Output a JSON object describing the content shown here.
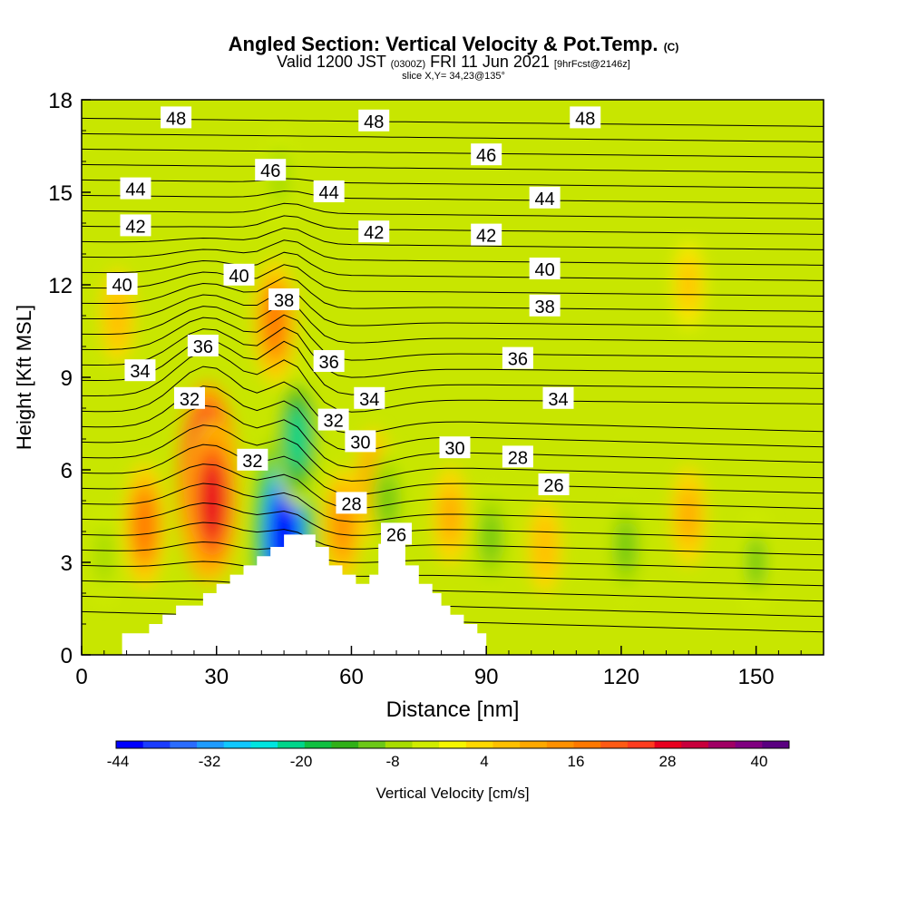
{
  "header": {
    "title": "Angled Section: Vertical Velocity & Pot.Temp.",
    "copyright": "(C)",
    "valid_prefix": "Valid 1200 JST",
    "valid_utc": "(0300Z)",
    "valid_date": "FRI 11 Jun 2021",
    "forecast": "[9hrFcst@2146z]",
    "slice": "slice X,Y= 34,23@135°"
  },
  "chart_data": {
    "type": "heatmap",
    "xlabel": "Distance [nm]",
    "ylabel": "Height [Kft MSL]",
    "xlim": [
      0,
      165
    ],
    "ylim": [
      0,
      18
    ],
    "x_ticks": [
      0,
      30,
      60,
      90,
      120,
      150
    ],
    "y_ticks": [
      0,
      3,
      6,
      9,
      12,
      15,
      18
    ],
    "colorbar": {
      "label": "Vertical Velocity [cm/s]",
      "tick_labels": [
        -44,
        -32,
        -20,
        -8,
        4,
        16,
        28,
        40
      ],
      "levels": [
        -44,
        44
      ],
      "colors": [
        "#0000ff",
        "#1b3cff",
        "#2a6cff",
        "#1e9cff",
        "#10c8ff",
        "#00e5e0",
        "#00d68a",
        "#10c040",
        "#30b018",
        "#6cc818",
        "#a8dc00",
        "#d0ec00",
        "#f6f600",
        "#ffd800",
        "#ffc000",
        "#ffa800",
        "#ff9000",
        "#ff7800",
        "#ff5a14",
        "#ff3c1e",
        "#e8001e",
        "#c8003c",
        "#a00064",
        "#800080",
        "#5a0080"
      ]
    },
    "vertical_velocity_cells": [
      {
        "x": 28,
        "y": 5.6,
        "value": 42
      },
      {
        "x": 29,
        "y": 5.0,
        "value": 30
      },
      {
        "x": 14,
        "y": 4.2,
        "value": 18
      },
      {
        "x": 45,
        "y": 3.8,
        "value": -44
      },
      {
        "x": 48,
        "y": 7.0,
        "value": -22
      },
      {
        "x": 43,
        "y": 10.8,
        "value": 18
      },
      {
        "x": 58,
        "y": 4.2,
        "value": 14
      },
      {
        "x": 65,
        "y": 5.5,
        "value": 14
      },
      {
        "x": 68,
        "y": 5.0,
        "value": -12
      },
      {
        "x": 82,
        "y": 4.5,
        "value": 10
      },
      {
        "x": 91,
        "y": 3.8,
        "value": -12
      },
      {
        "x": 103,
        "y": 3.5,
        "value": 8
      },
      {
        "x": 121,
        "y": 3.5,
        "value": -12
      },
      {
        "x": 135,
        "y": 4.5,
        "value": 10
      },
      {
        "x": 150,
        "y": 3.0,
        "value": -10
      },
      {
        "x": 5,
        "y": 3.2,
        "value": -8
      },
      {
        "x": 8,
        "y": 11.0,
        "value": 8
      },
      {
        "x": 135,
        "y": 12.0,
        "value": 6
      },
      {
        "x": 44,
        "y": 15.5,
        "value": -8
      }
    ],
    "potential_temperature_labels": [
      {
        "value": "48",
        "x": 21,
        "y": 17.4
      },
      {
        "value": "48",
        "x": 65,
        "y": 17.3
      },
      {
        "value": "48",
        "x": 112,
        "y": 17.4
      },
      {
        "value": "46",
        "x": 42,
        "y": 15.7
      },
      {
        "value": "46",
        "x": 90,
        "y": 16.2
      },
      {
        "value": "44",
        "x": 12,
        "y": 15.1
      },
      {
        "value": "44",
        "x": 55,
        "y": 15.0
      },
      {
        "value": "44",
        "x": 103,
        "y": 14.8
      },
      {
        "value": "42",
        "x": 12,
        "y": 13.9
      },
      {
        "value": "42",
        "x": 65,
        "y": 13.7
      },
      {
        "value": "42",
        "x": 90,
        "y": 13.6
      },
      {
        "value": "40",
        "x": 9,
        "y": 12.0
      },
      {
        "value": "40",
        "x": 35,
        "y": 12.3
      },
      {
        "value": "40",
        "x": 103,
        "y": 12.5
      },
      {
        "value": "38",
        "x": 45,
        "y": 11.5
      },
      {
        "value": "38",
        "x": 103,
        "y": 11.3
      },
      {
        "value": "36",
        "x": 27,
        "y": 10.0
      },
      {
        "value": "36",
        "x": 55,
        "y": 9.5
      },
      {
        "value": "36",
        "x": 97,
        "y": 9.6
      },
      {
        "value": "34",
        "x": 13,
        "y": 9.2
      },
      {
        "value": "34",
        "x": 64,
        "y": 8.3
      },
      {
        "value": "34",
        "x": 106,
        "y": 8.3
      },
      {
        "value": "32",
        "x": 24,
        "y": 8.3
      },
      {
        "value": "32",
        "x": 56,
        "y": 7.6
      },
      {
        "value": "32",
        "x": 38,
        "y": 6.3
      },
      {
        "value": "30",
        "x": 62,
        "y": 6.9
      },
      {
        "value": "30",
        "x": 83,
        "y": 6.7
      },
      {
        "value": "28",
        "x": 97,
        "y": 6.4
      },
      {
        "value": "28",
        "x": 60,
        "y": 4.9
      },
      {
        "value": "26",
        "x": 105,
        "y": 5.5
      },
      {
        "value": "26",
        "x": 70,
        "y": 3.9
      }
    ],
    "terrain_profile": [
      [
        9,
        0.3
      ],
      [
        9,
        0.7
      ],
      [
        15,
        0.7
      ],
      [
        15,
        1.0
      ],
      [
        18,
        1.0
      ],
      [
        18,
        1.3
      ],
      [
        21,
        1.3
      ],
      [
        21,
        1.6
      ],
      [
        27,
        1.6
      ],
      [
        27,
        2.0
      ],
      [
        30,
        2.0
      ],
      [
        30,
        2.3
      ],
      [
        33,
        2.3
      ],
      [
        33,
        2.6
      ],
      [
        36,
        2.6
      ],
      [
        36,
        2.9
      ],
      [
        39,
        2.9
      ],
      [
        39,
        3.2
      ],
      [
        42,
        3.2
      ],
      [
        42,
        3.5
      ],
      [
        45,
        3.5
      ],
      [
        45,
        3.9
      ],
      [
        52,
        3.9
      ],
      [
        52,
        3.5
      ],
      [
        55,
        3.5
      ],
      [
        55,
        2.9
      ],
      [
        58,
        2.9
      ],
      [
        58,
        2.6
      ],
      [
        61,
        2.6
      ],
      [
        61,
        2.3
      ],
      [
        64,
        2.3
      ],
      [
        64,
        2.6
      ],
      [
        66,
        2.6
      ],
      [
        66,
        3.6
      ],
      [
        72,
        3.6
      ],
      [
        72,
        2.9
      ],
      [
        75,
        2.9
      ],
      [
        75,
        2.3
      ],
      [
        78,
        2.3
      ],
      [
        78,
        2.0
      ],
      [
        80,
        2.0
      ],
      [
        80,
        1.6
      ],
      [
        82,
        1.6
      ],
      [
        82,
        1.3
      ],
      [
        85,
        1.3
      ],
      [
        85,
        1.0
      ],
      [
        88,
        1.0
      ],
      [
        88,
        0.7
      ],
      [
        90,
        0.7
      ],
      [
        90,
        0.3
      ]
    ]
  }
}
